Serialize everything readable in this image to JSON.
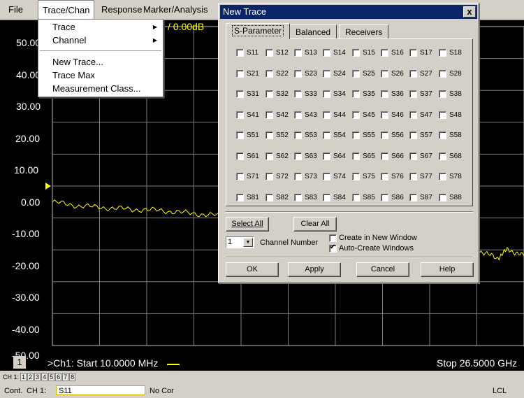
{
  "menubar": {
    "file": "File",
    "trace_chan": "Trace/Chan",
    "response": "Response",
    "marker_analysis": "Marker/Analysis"
  },
  "trace_menu": {
    "trace": "Trace",
    "channel": "Channel",
    "new_trace": "New Trace...",
    "trace_max": "Trace Max",
    "measurement_class": "Measurement Class..."
  },
  "chart": {
    "scale_readout": "/ 0.00dB",
    "y_ticks": [
      "50.00",
      "40.00",
      "30.00",
      "20.00",
      "10.00",
      "0.00",
      "-10.00",
      "-20.00",
      "-30.00",
      "-40.00",
      "-50.00"
    ],
    "channel_number": "1",
    "start": ">Ch1: Start  10.0000 MHz",
    "stop": "Stop  26.5000 GHz",
    "trace_color": "#ffff00"
  },
  "chart_data": {
    "type": "line",
    "title": "",
    "xlabel": "",
    "ylabel": "",
    "xlim": [
      0.01,
      26.5
    ],
    "ylim": [
      -50,
      50
    ],
    "grid": true,
    "reference_level": 0,
    "series": [
      {
        "values_x": [
          0.01,
          1.5,
          3.0,
          4.5,
          6.0,
          7.5,
          9.0,
          10.5,
          12.0,
          13.5,
          15.0,
          16.5,
          18.0,
          19.5,
          21.0,
          22.5,
          24.0,
          25.0,
          25.6,
          26.5
        ],
        "values_y": [
          -5.0,
          -6.2,
          -6.8,
          -7.3,
          -7.6,
          -8.4,
          -9.1,
          -9.6,
          -10.2,
          -10.8,
          -11.5,
          -12.6,
          -13.8,
          -15.2,
          -16.8,
          -18.4,
          -20.4,
          -22.6,
          -19.8,
          -22.0
        ]
      }
    ]
  },
  "status": {
    "ch_row_label": "CH 1:",
    "ch_cells": [
      "1",
      "2",
      "3",
      "4",
      "5",
      "6",
      "7",
      "8"
    ],
    "cont": "Cont.",
    "ch1": "CH 1:",
    "measurement": "S11",
    "correction": "No Cor",
    "lcl": "LCL"
  },
  "dialog": {
    "title": "New Trace",
    "close": "x",
    "tabs": [
      "S-Parameter",
      "Balanced",
      "Receivers"
    ],
    "params": [
      [
        "S11",
        "S12",
        "S13",
        "S14",
        "S15",
        "S16",
        "S17",
        "S18"
      ],
      [
        "S21",
        "S22",
        "S23",
        "S24",
        "S25",
        "S26",
        "S27",
        "S28"
      ],
      [
        "S31",
        "S32",
        "S33",
        "S34",
        "S35",
        "S36",
        "S37",
        "S38"
      ],
      [
        "S41",
        "S42",
        "S43",
        "S44",
        "S45",
        "S46",
        "S47",
        "S48"
      ],
      [
        "S51",
        "S52",
        "S53",
        "S54",
        "S55",
        "S56",
        "S57",
        "S58"
      ],
      [
        "S61",
        "S62",
        "S63",
        "S64",
        "S65",
        "S66",
        "S67",
        "S68"
      ],
      [
        "S71",
        "S72",
        "S73",
        "S74",
        "S75",
        "S76",
        "S77",
        "S78"
      ],
      [
        "S81",
        "S82",
        "S83",
        "S84",
        "S85",
        "S86",
        "S87",
        "S88"
      ]
    ],
    "select_all": "Select All",
    "clear_all": "Clear All",
    "channel_value": "1",
    "channel_number_label": "Channel Number",
    "create_new_window": "Create in New Window",
    "create_new_window_checked": false,
    "auto_create_windows": "Auto-Create Windows",
    "auto_create_windows_checked": true,
    "ok": "OK",
    "apply": "Apply",
    "cancel": "Cancel",
    "help": "Help"
  }
}
